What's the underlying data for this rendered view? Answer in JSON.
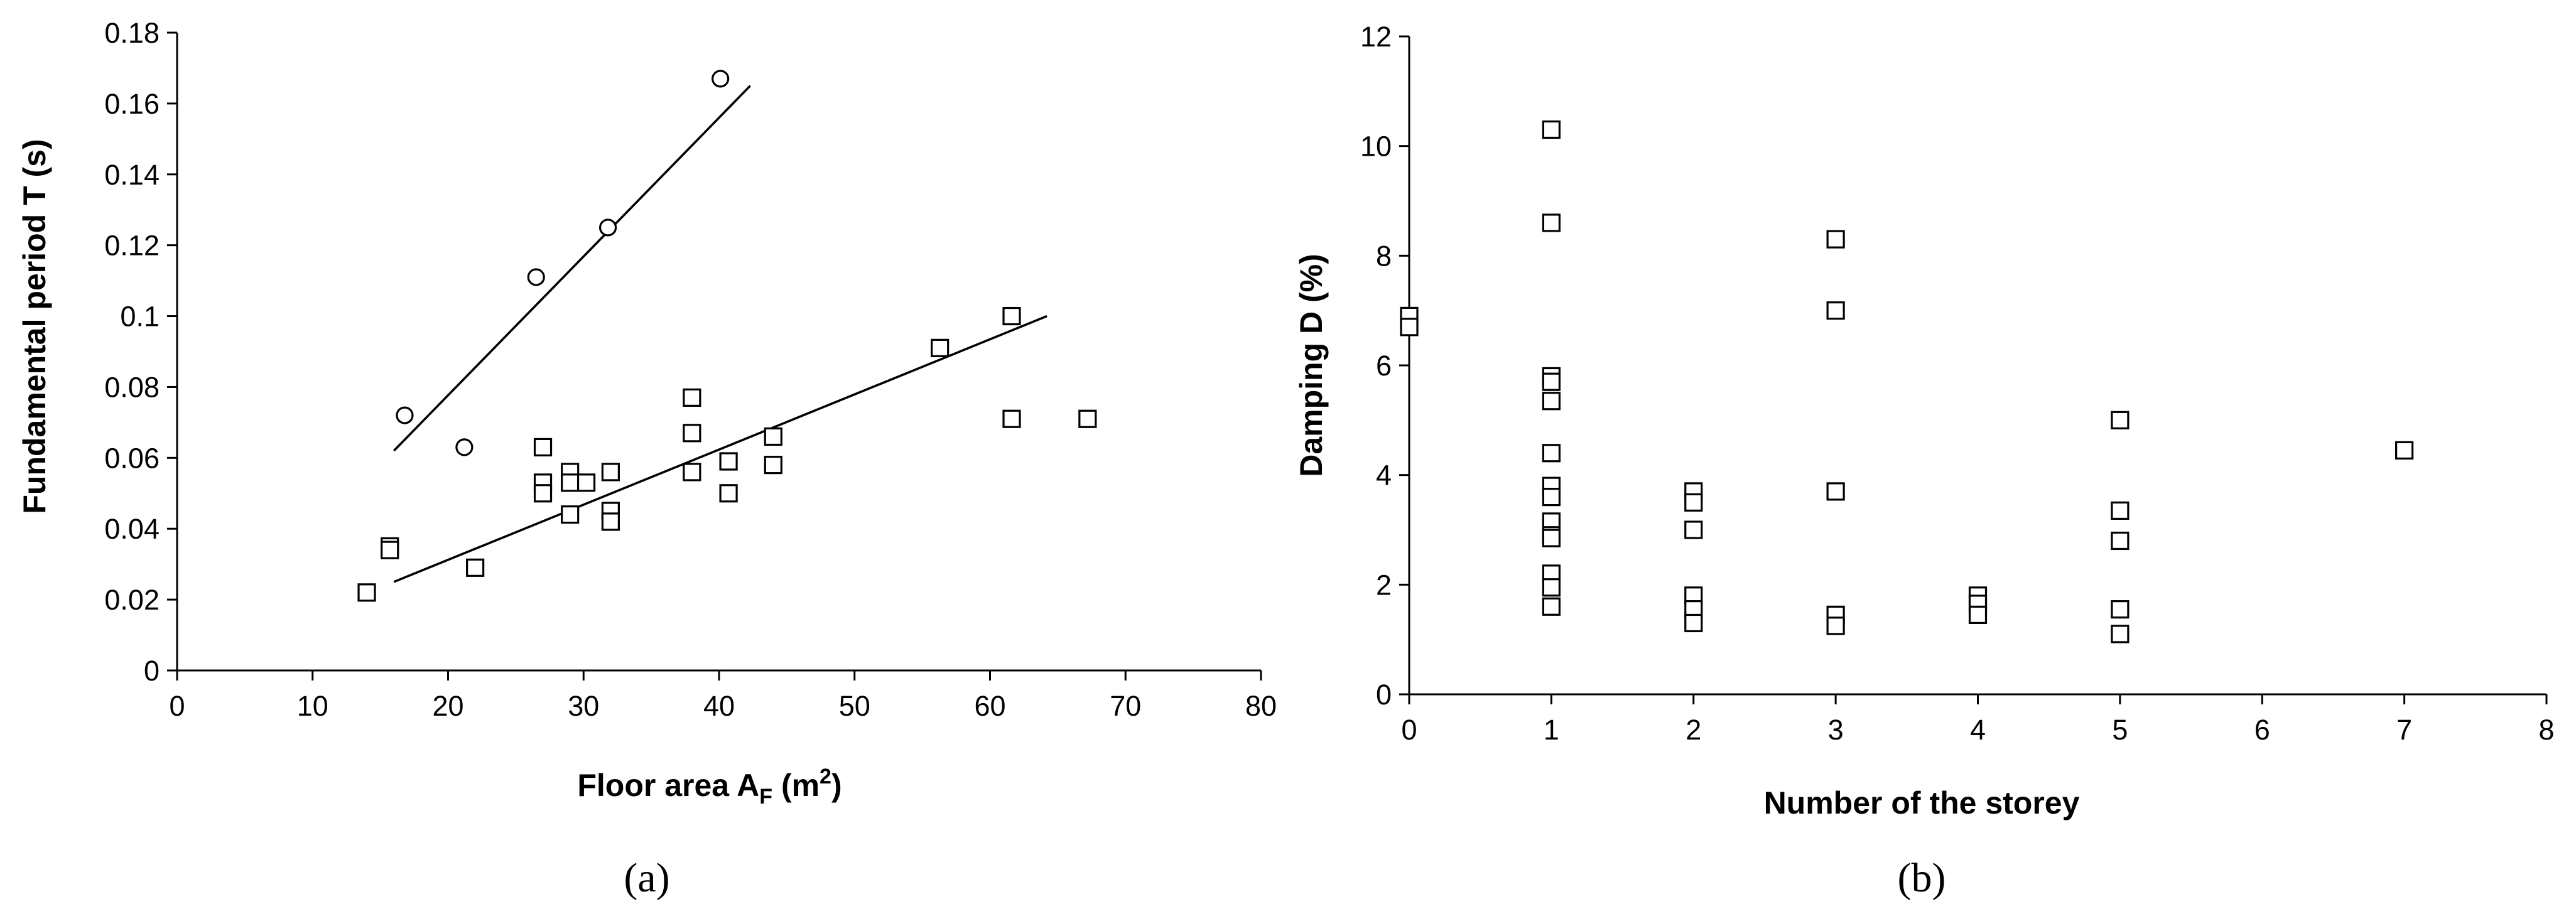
{
  "chart_data": [
    {
      "type": "scatter",
      "caption": "(a)",
      "xlabel_main": "Floor area A",
      "xlabel_sub": "F",
      "xlabel_unit_open": " (m",
      "xlabel_sup": "2",
      "xlabel_unit_close": ")",
      "ylabel": "Fundamental period T (s)",
      "xlim": [
        0,
        80
      ],
      "ylim": [
        0,
        0.18
      ],
      "x_ticks": [
        "0",
        "10",
        "20",
        "30",
        "40",
        "50",
        "60",
        "70",
        "80"
      ],
      "y_ticks": [
        "0",
        "0.02",
        "0.04",
        "0.06",
        "0.08",
        "0.1",
        "0.12",
        "0.14",
        "0.16",
        "0.18"
      ],
      "grid": false,
      "series": [
        {
          "marker": "circle",
          "points": [
            [
              16.8,
              0.072
            ],
            [
              21.2,
              0.063
            ],
            [
              26.5,
              0.111
            ],
            [
              31.8,
              0.125
            ],
            [
              40.1,
              0.167
            ]
          ],
          "fit_line": [
            [
              16,
              0.062
            ],
            [
              42.3,
              0.165
            ]
          ]
        },
        {
          "marker": "square",
          "points": [
            [
              14,
              0.022
            ],
            [
              15.7,
              0.035
            ],
            [
              15.7,
              0.034
            ],
            [
              22,
              0.029
            ],
            [
              27,
              0.063
            ],
            [
              27,
              0.053
            ],
            [
              27,
              0.05
            ],
            [
              29,
              0.056
            ],
            [
              29,
              0.053
            ],
            [
              29,
              0.044
            ],
            [
              30.2,
              0.053
            ],
            [
              32,
              0.056
            ],
            [
              32,
              0.045
            ],
            [
              32,
              0.042
            ],
            [
              38,
              0.077
            ],
            [
              38,
              0.067
            ],
            [
              38,
              0.056
            ],
            [
              40.7,
              0.059
            ],
            [
              40.7,
              0.05
            ],
            [
              44,
              0.066
            ],
            [
              44,
              0.058
            ],
            [
              56.3,
              0.091
            ],
            [
              61.6,
              0.1
            ],
            [
              61.6,
              0.071
            ],
            [
              67.2,
              0.071
            ]
          ],
          "fit_line": [
            [
              16,
              0.025
            ],
            [
              64.2,
              0.1
            ]
          ]
        }
      ]
    },
    {
      "type": "scatter",
      "caption": "(b)",
      "xlabel": "Number of the storey",
      "ylabel": "Damping D (%)",
      "xlim": [
        0,
        8
      ],
      "ylim": [
        0,
        12
      ],
      "x_ticks": [
        "0",
        "1",
        "2",
        "3",
        "4",
        "5",
        "6",
        "7",
        "8"
      ],
      "y_ticks": [
        "0",
        "2",
        "4",
        "6",
        "8",
        "10",
        "12"
      ],
      "grid": false,
      "series": [
        {
          "marker": "square",
          "points": [
            [
              0,
              6.9
            ],
            [
              0,
              6.7
            ],
            [
              1,
              10.3
            ],
            [
              1,
              8.6
            ],
            [
              1,
              5.8
            ],
            [
              1,
              5.7
            ],
            [
              1,
              5.35
            ],
            [
              1,
              4.4
            ],
            [
              1,
              3.8
            ],
            [
              1,
              3.6
            ],
            [
              1,
              3.15
            ],
            [
              1,
              2.9
            ],
            [
              1,
              2.85
            ],
            [
              1,
              2.2
            ],
            [
              1,
              1.95
            ],
            [
              1,
              1.6
            ],
            [
              2,
              3.7
            ],
            [
              2,
              3.5
            ],
            [
              2,
              3.0
            ],
            [
              2,
              1.8
            ],
            [
              2,
              1.55
            ],
            [
              2,
              1.3
            ],
            [
              3,
              8.3
            ],
            [
              3,
              7.0
            ],
            [
              3,
              3.7
            ],
            [
              3,
              1.45
            ],
            [
              3,
              1.25
            ],
            [
              4,
              1.8
            ],
            [
              4,
              1.65
            ],
            [
              4,
              1.45
            ],
            [
              5,
              5.0
            ],
            [
              5,
              3.35
            ],
            [
              5,
              2.8
            ],
            [
              5,
              1.55
            ],
            [
              5,
              1.1
            ],
            [
              7,
              4.45
            ]
          ]
        }
      ]
    }
  ]
}
